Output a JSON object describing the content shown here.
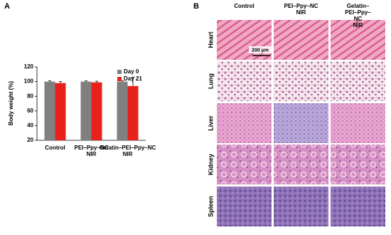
{
  "chart_data": {
    "type": "bar",
    "panel_label": "A",
    "ylabel": "Body weight (%)",
    "categories": [
      "Control",
      "PEI–Ppy–NC\nNIR",
      "Gelatin–PEI–Ppy–NC\nNIR"
    ],
    "series": [
      {
        "name": "Day 0",
        "color": "#808080",
        "values": [
          100,
          100,
          100
        ],
        "errors": [
          1,
          1,
          1
        ]
      },
      {
        "name": "Day 21",
        "color": "#e8211b",
        "values": [
          98,
          99,
          94
        ],
        "errors": [
          2,
          1.5,
          12
        ]
      }
    ],
    "ylim": [
      20,
      120
    ],
    "yticks": [
      20,
      40,
      60,
      80,
      100,
      120
    ],
    "grid": false,
    "legend": "upper right"
  },
  "histology": {
    "panel_label": "B",
    "columns": [
      "Control",
      "PEI–Ppy–NC\nNIR",
      "Gelatin–PEI–Ppy–NC\nNIR"
    ],
    "rows": [
      "Heart",
      "Lung",
      "Liver",
      "Kidney",
      "Spleen"
    ],
    "scale_bar": "200 µm"
  }
}
